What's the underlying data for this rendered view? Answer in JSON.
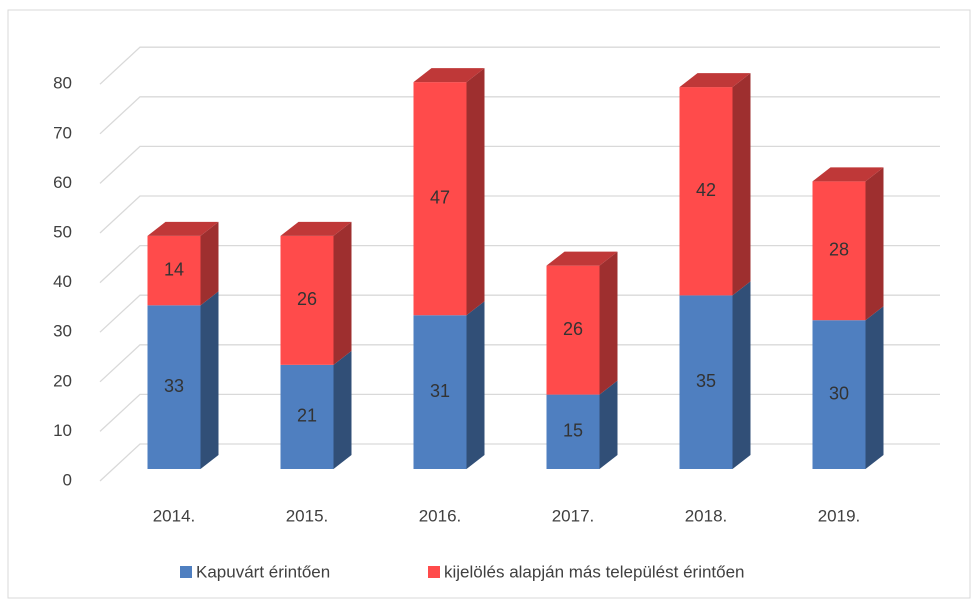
{
  "chart_data": {
    "type": "bar3d_stacked",
    "categories": [
      "2014.",
      "2015.",
      "2016.",
      "2017.",
      "2018.",
      "2019."
    ],
    "series": [
      {
        "name": "Kapuvárt érintően",
        "color": "#4f7fc0",
        "values": [
          33,
          21,
          31,
          15,
          35,
          30
        ]
      },
      {
        "name": "kijelölés alapján más települést érintően",
        "color": "#ff4b4b",
        "values": [
          14,
          26,
          47,
          26,
          42,
          28
        ]
      }
    ],
    "ylim": [
      0,
      80
    ],
    "yticks": [
      0,
      10,
      20,
      30,
      40,
      50,
      60,
      70,
      80
    ],
    "grid": true,
    "legend": "bottom"
  }
}
